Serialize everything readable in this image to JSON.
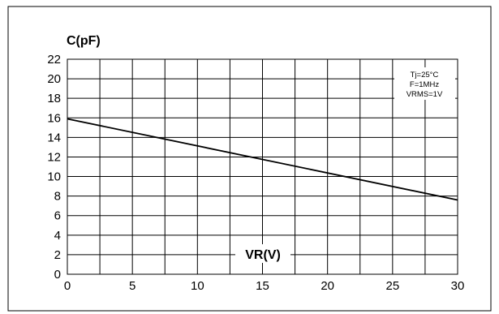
{
  "chart_data": {
    "type": "line",
    "ylabel": "C(pF)",
    "xlabel": "VR(V)",
    "xlim": [
      0,
      30
    ],
    "ylim": [
      0,
      22
    ],
    "x_ticks": [
      "0",
      "5",
      "10",
      "15",
      "20",
      "25",
      "30"
    ],
    "y_ticks": [
      "0",
      "2",
      "4",
      "6",
      "8",
      "10",
      "12",
      "14",
      "16",
      "18",
      "20",
      "22"
    ],
    "grid": true,
    "series": [
      {
        "x": [
          0,
          30
        ],
        "y": [
          15.9,
          7.6
        ]
      }
    ],
    "conditions": [
      "Tj=25°C",
      "F=1MHz",
      "VRMS=1V"
    ]
  }
}
